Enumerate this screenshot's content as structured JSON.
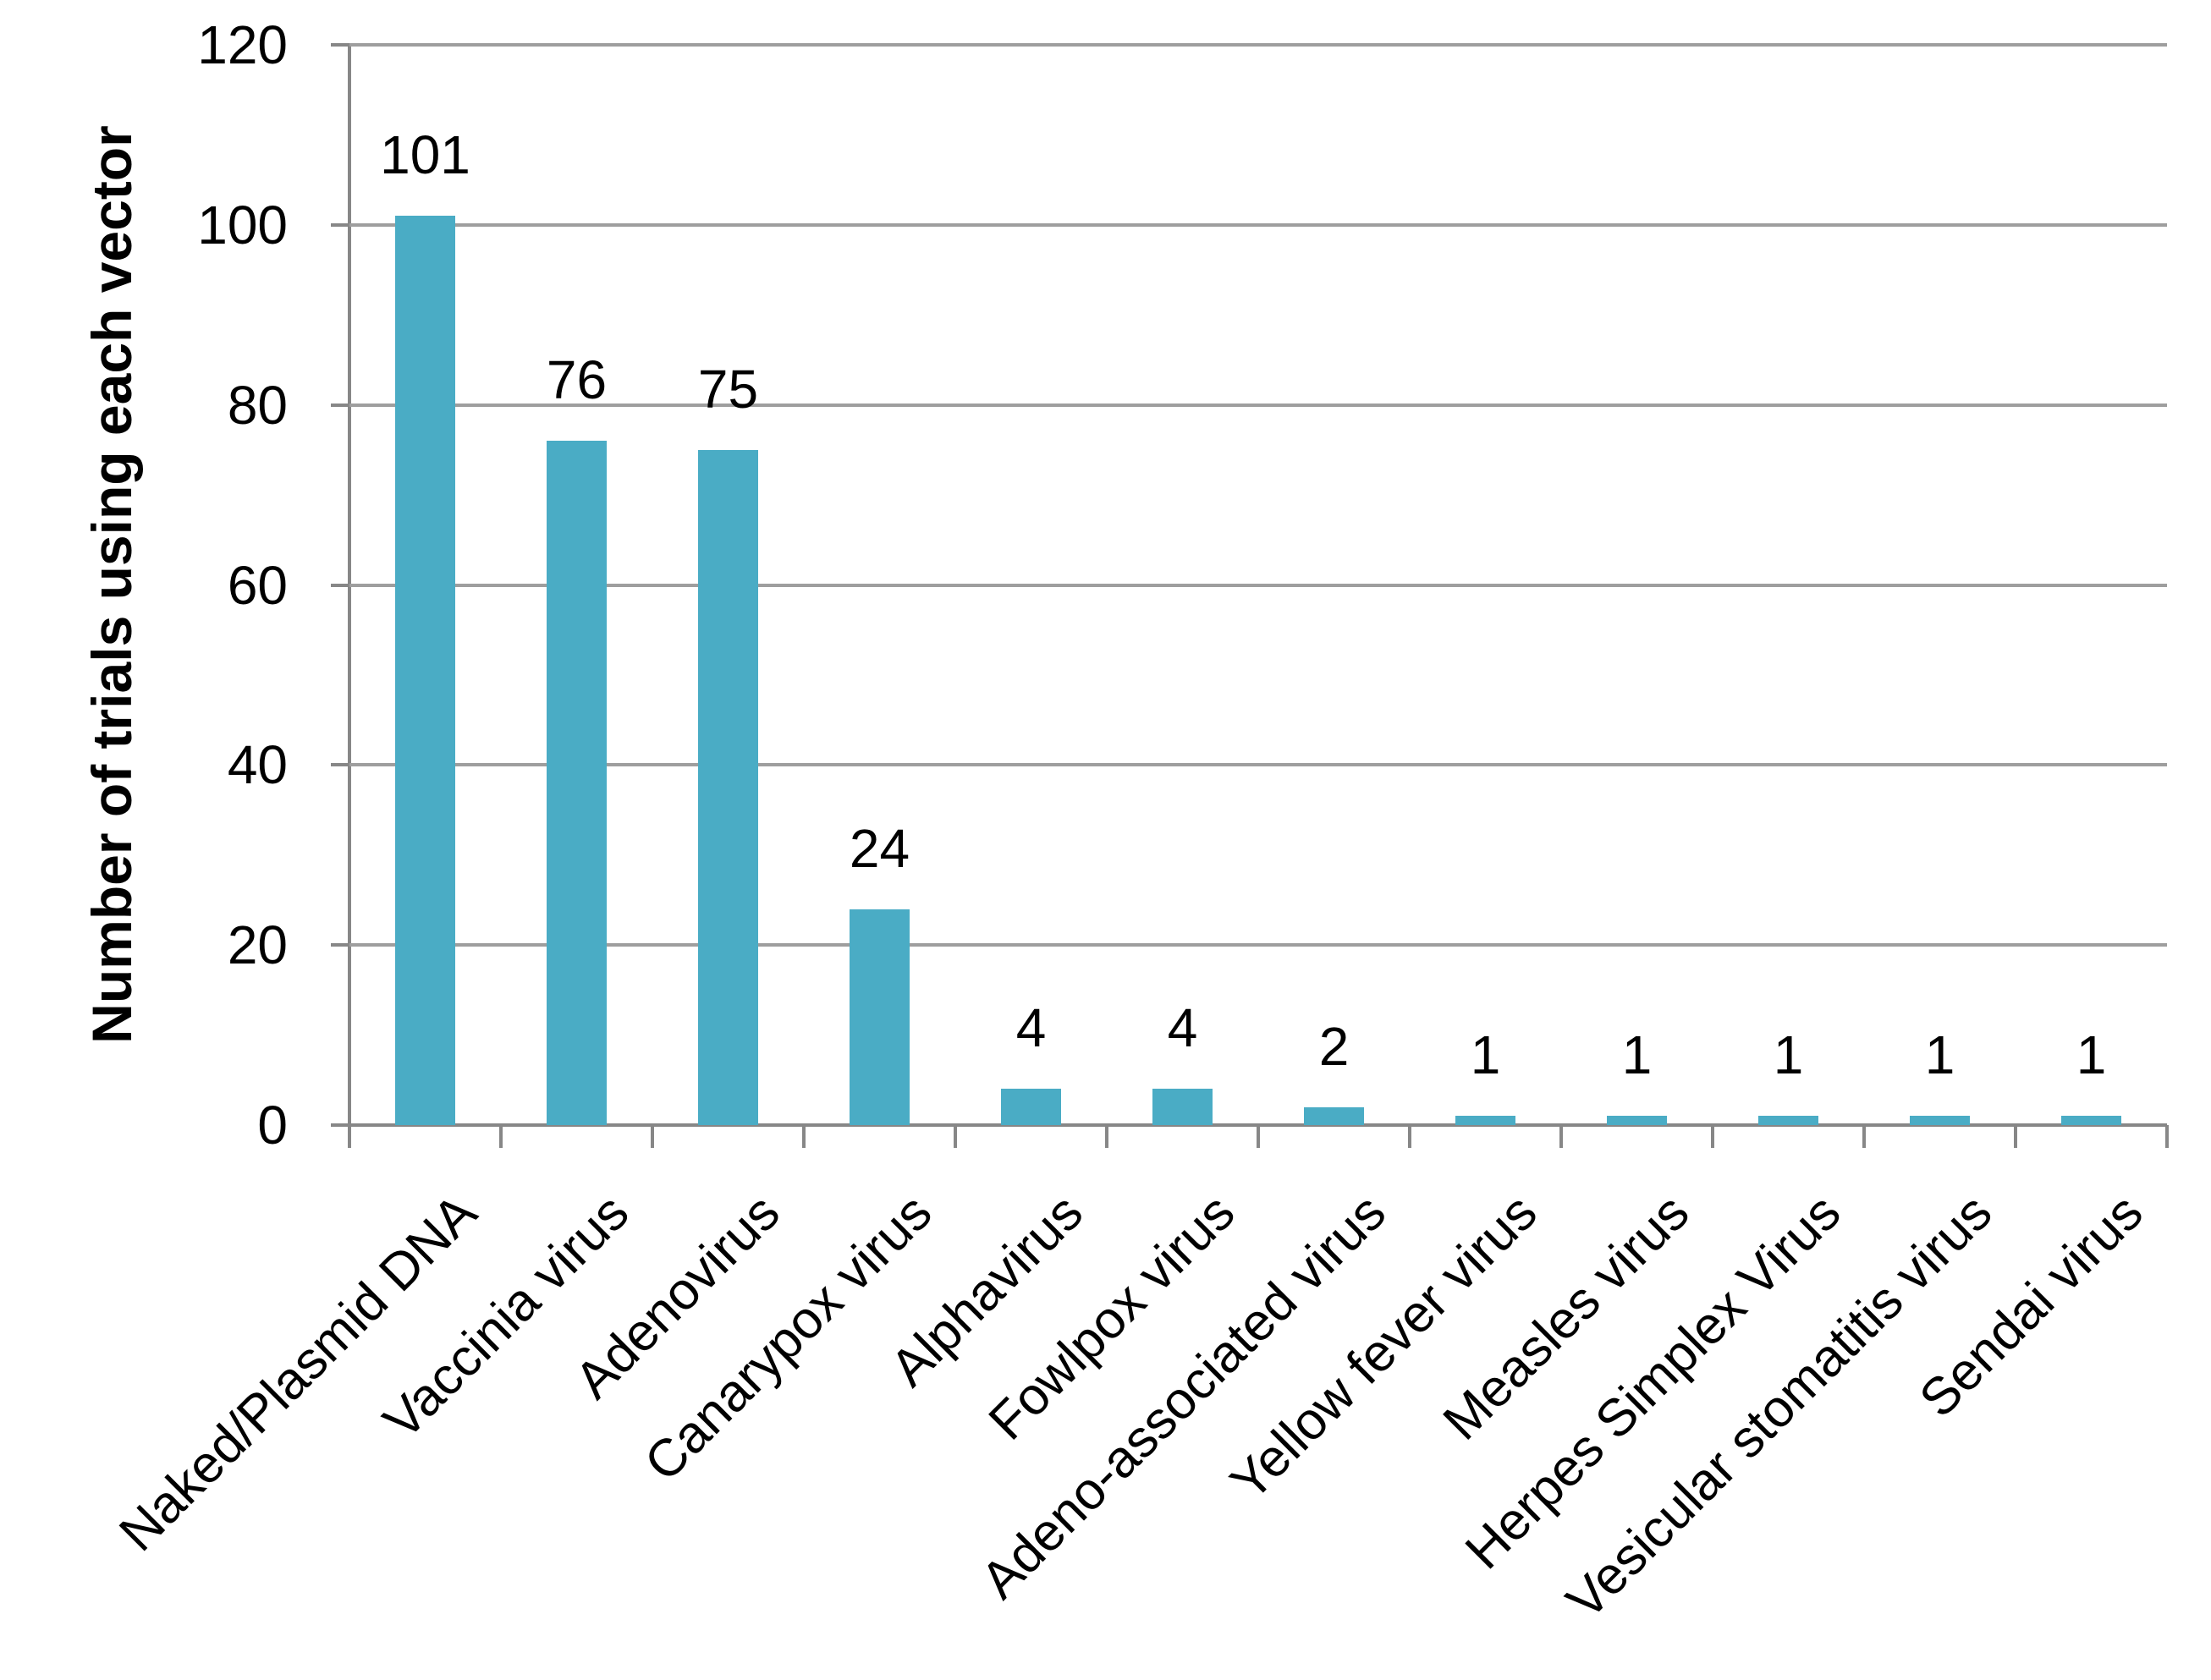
{
  "chart_data": {
    "type": "bar",
    "title": "",
    "xlabel": "",
    "ylabel": "Number of trials using each vector",
    "categories": [
      "Naked/Plasmid DNA",
      "Vaccinia virus",
      "Adenovirus",
      "Canarypox virus",
      "Alphavirus",
      "Fowlpox virus",
      "Adeno-associated virus",
      "Yellow fever virus",
      "Measles virus",
      "Herpes Simplex Virus",
      "Vesicular stomatitis virus",
      "Sendai virus"
    ],
    "values": [
      101,
      76,
      75,
      24,
      4,
      4,
      2,
      1,
      1,
      1,
      1,
      1
    ],
    "value_labels": [
      "101",
      "76",
      "75",
      "24",
      "4",
      "4",
      "2",
      "1",
      "1",
      "1",
      "1",
      "1"
    ],
    "yticks": [
      0,
      20,
      40,
      60,
      80,
      100,
      120
    ],
    "ylim": [
      0,
      120
    ],
    "grid": true,
    "legend": false,
    "colors": {
      "bar": "#4aacc5",
      "gridline": "#9e9e9e",
      "axis": "#878787",
      "text": "#000000"
    }
  }
}
